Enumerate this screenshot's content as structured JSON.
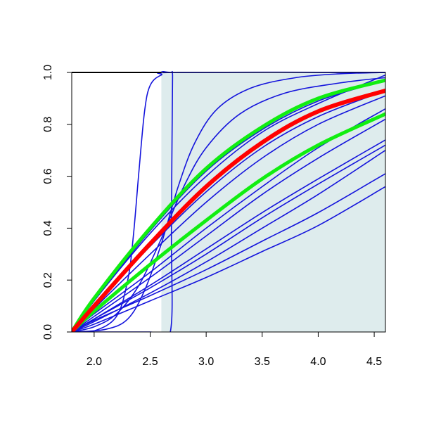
{
  "chart_data": {
    "type": "line",
    "title": "",
    "xlabel": "",
    "ylabel": "",
    "xlim": [
      1.8,
      4.6
    ],
    "ylim": [
      0,
      1
    ],
    "x_ticks": [
      "2.0",
      "2.5",
      "3.0",
      "3.5",
      "4.0",
      "4.5"
    ],
    "y_ticks": [
      "0.0",
      "0.2",
      "0.4",
      "0.6",
      "0.8",
      "1.0"
    ],
    "grid": false,
    "shaded_region": {
      "x": [
        2.6,
        4.6
      ],
      "color": "#deeced"
    },
    "colors": {
      "blue": "#1414dc",
      "red": "#ff0000",
      "green": "#11ee11"
    },
    "series": [
      {
        "color": "#1414dc",
        "points": [
          [
            1.8,
            0
          ],
          [
            2.0,
            0.004
          ],
          [
            2.2,
            0.06
          ],
          [
            2.3,
            0.2
          ],
          [
            2.35,
            0.37
          ],
          [
            2.4,
            0.62
          ],
          [
            2.45,
            0.85
          ],
          [
            2.5,
            0.95
          ],
          [
            2.6,
            0.99
          ],
          [
            2.75,
            1.0
          ],
          [
            4.6,
            1.0
          ]
        ]
      },
      {
        "color": "#1414dc",
        "points": [
          [
            1.8,
            0
          ],
          [
            2.5,
            0.0
          ],
          [
            2.68,
            0.0
          ],
          [
            2.69,
            0.4
          ],
          [
            2.7,
            0.985
          ],
          [
            2.72,
            1.0
          ],
          [
            4.6,
            1.0
          ]
        ]
      },
      {
        "color": "#1414dc",
        "points": [
          [
            1.8,
            0
          ],
          [
            2.1,
            0.01
          ],
          [
            2.3,
            0.05
          ],
          [
            2.45,
            0.16
          ],
          [
            2.6,
            0.34
          ],
          [
            2.75,
            0.56
          ],
          [
            2.9,
            0.73
          ],
          [
            3.1,
            0.86
          ],
          [
            3.4,
            0.94
          ],
          [
            3.8,
            0.98
          ],
          [
            4.2,
            0.995
          ],
          [
            4.6,
            1.0
          ]
        ]
      },
      {
        "color": "#1414dc",
        "points": [
          [
            1.8,
            0
          ],
          [
            2.0,
            0.12
          ],
          [
            2.5,
            0.39
          ],
          [
            3.0,
            0.62
          ],
          [
            3.5,
            0.78
          ],
          [
            4.0,
            0.89
          ],
          [
            4.6,
            0.97
          ]
        ]
      },
      {
        "color": "#1414dc",
        "points": [
          [
            1.8,
            0
          ],
          [
            2.0,
            0.12
          ],
          [
            2.5,
            0.38
          ],
          [
            3.0,
            0.6
          ],
          [
            3.5,
            0.77
          ],
          [
            4.0,
            0.88
          ],
          [
            4.6,
            0.99
          ]
        ]
      },
      {
        "color": "#1414dc",
        "points": [
          [
            1.8,
            0
          ],
          [
            2.0,
            0.1
          ],
          [
            2.5,
            0.33
          ],
          [
            3.0,
            0.54
          ],
          [
            3.5,
            0.71
          ],
          [
            4.0,
            0.83
          ],
          [
            4.6,
            0.93
          ]
        ]
      },
      {
        "color": "#1414dc",
        "points": [
          [
            1.8,
            0
          ],
          [
            2.0,
            0.09
          ],
          [
            2.5,
            0.3
          ],
          [
            3.0,
            0.5
          ],
          [
            3.5,
            0.67
          ],
          [
            4.0,
            0.8
          ],
          [
            4.6,
            0.91
          ]
        ]
      },
      {
        "color": "#1414dc",
        "points": [
          [
            1.8,
            0
          ],
          [
            2.0,
            0.07
          ],
          [
            2.5,
            0.23
          ],
          [
            3.0,
            0.4
          ],
          [
            3.5,
            0.56
          ],
          [
            4.0,
            0.71
          ],
          [
            4.6,
            0.86
          ]
        ]
      },
      {
        "color": "#1414dc",
        "points": [
          [
            1.8,
            0
          ],
          [
            2.0,
            0.06
          ],
          [
            2.5,
            0.21
          ],
          [
            3.0,
            0.37
          ],
          [
            3.5,
            0.53
          ],
          [
            4.0,
            0.67
          ],
          [
            4.6,
            0.82
          ]
        ]
      },
      {
        "color": "#1414dc",
        "points": [
          [
            1.8,
            0
          ],
          [
            2.0,
            0.05
          ],
          [
            2.5,
            0.18
          ],
          [
            3.0,
            0.32
          ],
          [
            3.5,
            0.46
          ],
          [
            4.0,
            0.59
          ],
          [
            4.6,
            0.74
          ]
        ]
      },
      {
        "color": "#1414dc",
        "points": [
          [
            1.8,
            0
          ],
          [
            2.0,
            0.05
          ],
          [
            2.5,
            0.17
          ],
          [
            3.0,
            0.3
          ],
          [
            3.5,
            0.44
          ],
          [
            4.0,
            0.57
          ],
          [
            4.6,
            0.72
          ]
        ]
      },
      {
        "color": "#1414dc",
        "points": [
          [
            1.8,
            0
          ],
          [
            2.0,
            0.04
          ],
          [
            2.5,
            0.15
          ],
          [
            3.0,
            0.27
          ],
          [
            3.5,
            0.4
          ],
          [
            4.0,
            0.53
          ],
          [
            4.6,
            0.7
          ]
        ]
      },
      {
        "color": "#1414dc",
        "points": [
          [
            1.8,
            0
          ],
          [
            2.0,
            0.045
          ],
          [
            2.5,
            0.14
          ],
          [
            3.0,
            0.24
          ],
          [
            3.5,
            0.35
          ],
          [
            4.0,
            0.46
          ],
          [
            4.6,
            0.61
          ]
        ]
      },
      {
        "color": "#1414dc",
        "points": [
          [
            1.8,
            0
          ],
          [
            2.0,
            0.03
          ],
          [
            2.5,
            0.12
          ],
          [
            3.0,
            0.21
          ],
          [
            3.5,
            0.31
          ],
          [
            4.0,
            0.41
          ],
          [
            4.6,
            0.56
          ]
        ]
      },
      {
        "color": "#1414dc",
        "points": [
          [
            1.8,
            0
          ],
          [
            2.0,
            0.02
          ],
          [
            2.2,
            0.07
          ],
          [
            2.4,
            0.18
          ],
          [
            2.6,
            0.36
          ],
          [
            2.8,
            0.56
          ],
          [
            3.0,
            0.71
          ],
          [
            3.3,
            0.84
          ],
          [
            3.7,
            0.92
          ],
          [
            4.2,
            0.96
          ],
          [
            4.6,
            0.98
          ]
        ]
      },
      {
        "color": "#11ee11",
        "width": 5,
        "points": [
          [
            1.8,
            0
          ],
          [
            2.0,
            0.13
          ],
          [
            2.5,
            0.4
          ],
          [
            3.0,
            0.63
          ],
          [
            3.5,
            0.79
          ],
          [
            4.0,
            0.9
          ],
          [
            4.6,
            0.97
          ]
        ]
      },
      {
        "color": "#11ee11",
        "width": 5,
        "points": [
          [
            1.8,
            0
          ],
          [
            2.0,
            0.08
          ],
          [
            2.5,
            0.26
          ],
          [
            3.0,
            0.43
          ],
          [
            3.5,
            0.59
          ],
          [
            4.0,
            0.72
          ],
          [
            4.6,
            0.84
          ]
        ]
      },
      {
        "color": "#ff0000",
        "width": 6,
        "points": [
          [
            1.8,
            0
          ],
          [
            2.0,
            0.1
          ],
          [
            2.5,
            0.34
          ],
          [
            3.0,
            0.56
          ],
          [
            3.5,
            0.73
          ],
          [
            4.0,
            0.85
          ],
          [
            4.6,
            0.93
          ]
        ]
      }
    ]
  }
}
